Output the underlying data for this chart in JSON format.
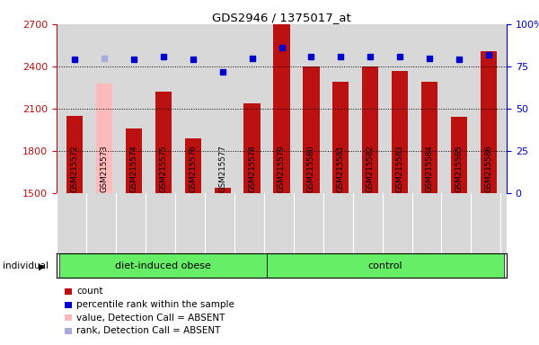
{
  "title": "GDS2946 / 1375017_at",
  "samples": [
    "GSM215572",
    "GSM215573",
    "GSM215574",
    "GSM215575",
    "GSM215576",
    "GSM215577",
    "GSM215578",
    "GSM215579",
    "GSM215580",
    "GSM215581",
    "GSM215582",
    "GSM215583",
    "GSM215584",
    "GSM215585",
    "GSM215586"
  ],
  "counts": [
    2050,
    2280,
    1960,
    2220,
    1890,
    1540,
    2140,
    2700,
    2400,
    2290,
    2400,
    2370,
    2290,
    2040,
    2510
  ],
  "percentile_ranks": [
    79,
    80,
    79,
    81,
    79,
    72,
    80,
    86,
    81,
    81,
    81,
    81,
    80,
    79,
    82
  ],
  "absent": [
    false,
    true,
    false,
    false,
    false,
    false,
    false,
    false,
    false,
    false,
    false,
    false,
    false,
    false,
    false
  ],
  "group1_indices": [
    0,
    1,
    2,
    3,
    4,
    5,
    6
  ],
  "group2_indices": [
    7,
    8,
    9,
    10,
    11,
    12,
    13,
    14
  ],
  "group1_label": "diet-induced obese",
  "group2_label": "control",
  "ylim_left": [
    1500,
    2700
  ],
  "ylim_right": [
    0,
    100
  ],
  "yticks_left": [
    1500,
    1800,
    2100,
    2400,
    2700
  ],
  "yticks_right": [
    0,
    25,
    50,
    75,
    100
  ],
  "bar_color_normal": "#bb1111",
  "bar_color_absent": "#ffbbbb",
  "dot_color_normal": "#0000cc",
  "dot_color_absent": "#aaaadd",
  "bg_plot": "#d8d8d8",
  "group_bg": "#66ee66",
  "legend_items": [
    {
      "label": "count",
      "color": "#bb1111"
    },
    {
      "label": "percentile rank within the sample",
      "color": "#0000cc"
    },
    {
      "label": "value, Detection Call = ABSENT",
      "color": "#ffbbbb"
    },
    {
      "label": "rank, Detection Call = ABSENT",
      "color": "#aaaadd"
    }
  ]
}
